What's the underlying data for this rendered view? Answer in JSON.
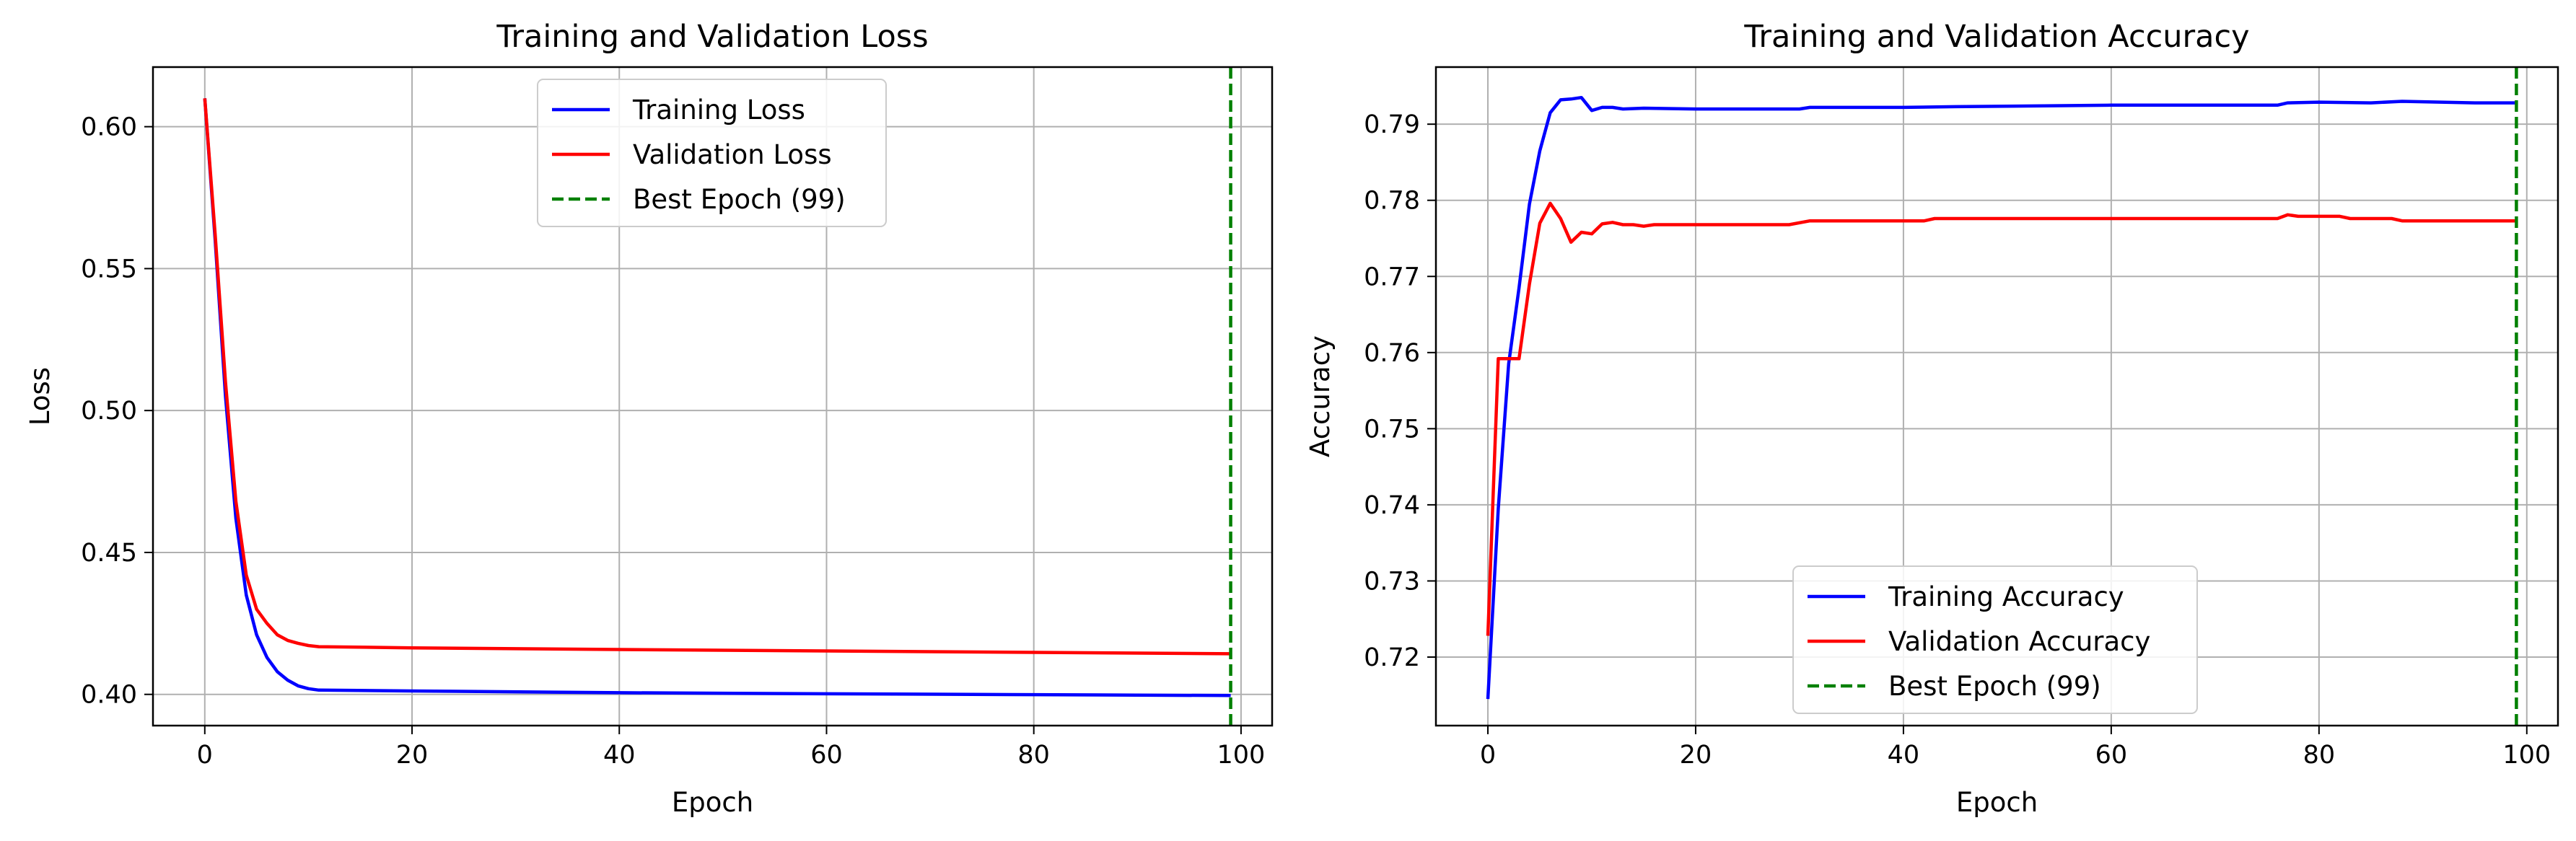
{
  "chart_data": [
    {
      "type": "line",
      "title": "Training and Validation Loss",
      "xlabel": "Epoch",
      "ylabel": "Loss",
      "xlim": [
        -5,
        103
      ],
      "ylim": [
        0.389,
        0.621
      ],
      "xticks": [
        0,
        20,
        40,
        60,
        80,
        100
      ],
      "xtick_labels": [
        "0",
        "20",
        "40",
        "60",
        "80",
        "100"
      ],
      "yticks": [
        0.4,
        0.45,
        0.5,
        0.55,
        0.6
      ],
      "ytick_labels": [
        "0.40",
        "0.45",
        "0.50",
        "0.55",
        "0.60"
      ],
      "grid": true,
      "legend_position": "top-center",
      "series": [
        {
          "name": "Training Loss",
          "color": "#0000ff",
          "x": [
            0,
            1,
            2,
            3,
            4,
            5,
            6,
            7,
            8,
            9,
            10,
            11,
            20,
            40,
            60,
            80,
            99
          ],
          "y": [
            0.61,
            0.56,
            0.505,
            0.462,
            0.435,
            0.421,
            0.413,
            0.408,
            0.405,
            0.403,
            0.402,
            0.4015,
            0.4012,
            0.4006,
            0.4002,
            0.3999,
            0.3996
          ]
        },
        {
          "name": "Validation Loss",
          "color": "#ff0000",
          "x": [
            0,
            1,
            2,
            3,
            4,
            5,
            6,
            7,
            8,
            9,
            10,
            11,
            20,
            40,
            60,
            80,
            99
          ],
          "y": [
            0.61,
            0.562,
            0.51,
            0.468,
            0.442,
            0.43,
            0.425,
            0.421,
            0.419,
            0.418,
            0.4172,
            0.4168,
            0.4164,
            0.4158,
            0.4153,
            0.4148,
            0.4143
          ]
        }
      ],
      "vline": {
        "name": "Best Epoch (99)",
        "x": 99,
        "color": "#008000"
      }
    },
    {
      "type": "line",
      "title": "Training and Validation Accuracy",
      "xlabel": "Epoch",
      "ylabel": "Accuracy",
      "xlim": [
        -5,
        103
      ],
      "ylim": [
        0.711,
        0.7975
      ],
      "xticks": [
        0,
        20,
        40,
        60,
        80,
        100
      ],
      "xtick_labels": [
        "0",
        "20",
        "40",
        "60",
        "80",
        "100"
      ],
      "yticks": [
        0.72,
        0.73,
        0.74,
        0.75,
        0.76,
        0.77,
        0.78,
        0.79
      ],
      "ytick_labels": [
        "0.72",
        "0.73",
        "0.74",
        "0.75",
        "0.76",
        "0.77",
        "0.78",
        "0.79"
      ],
      "grid": true,
      "legend_position": "bottom-center",
      "series": [
        {
          "name": "Training Accuracy",
          "color": "#0000ff",
          "x": [
            0,
            1,
            2,
            3,
            4,
            5,
            6,
            7,
            8,
            9,
            10,
            11,
            12,
            13,
            15,
            20,
            30,
            31,
            40,
            45,
            60,
            76,
            77,
            80,
            85,
            88,
            95,
            99
          ],
          "y": [
            0.7145,
            0.7395,
            0.7585,
            0.7685,
            0.7795,
            0.7865,
            0.7915,
            0.7932,
            0.7933,
            0.7935,
            0.7918,
            0.7922,
            0.7922,
            0.792,
            0.7921,
            0.792,
            0.792,
            0.7922,
            0.7922,
            0.7923,
            0.7925,
            0.7925,
            0.7928,
            0.7929,
            0.7928,
            0.793,
            0.7928,
            0.7928
          ]
        },
        {
          "name": "Validation Accuracy",
          "color": "#ff0000",
          "x": [
            0,
            1,
            2,
            3,
            4,
            5,
            6,
            7,
            8,
            9,
            10,
            11,
            12,
            13,
            14,
            15,
            16,
            20,
            29,
            31,
            40,
            42,
            43,
            60,
            76,
            77,
            78,
            82,
            83,
            87,
            88,
            99
          ],
          "y": [
            0.7228,
            0.7592,
            0.7592,
            0.7592,
            0.769,
            0.777,
            0.7796,
            0.7776,
            0.7745,
            0.7758,
            0.7756,
            0.7769,
            0.7771,
            0.7768,
            0.7768,
            0.7766,
            0.7768,
            0.7768,
            0.7768,
            0.7773,
            0.7773,
            0.7773,
            0.7776,
            0.7776,
            0.7776,
            0.7781,
            0.7779,
            0.7779,
            0.7776,
            0.7776,
            0.7773,
            0.7773
          ]
        }
      ],
      "vline": {
        "name": "Best Epoch (99)",
        "x": 99,
        "color": "#008000"
      }
    }
  ]
}
